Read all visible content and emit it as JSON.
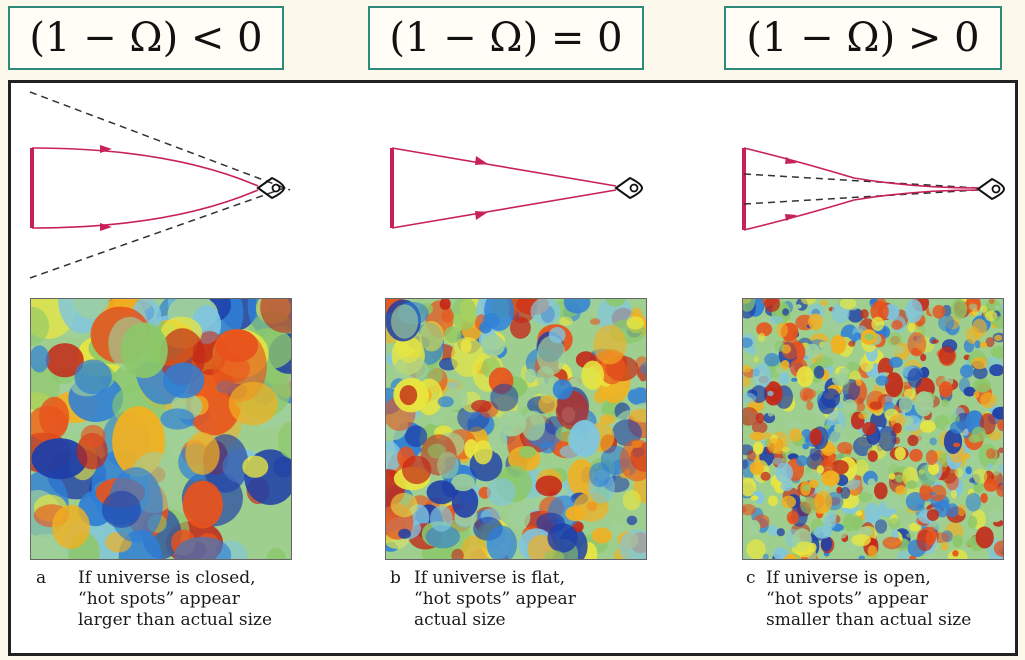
{
  "labels": {
    "closed": "(1 − Ω) < 0",
    "flat": "(1 − Ω) = 0",
    "open": "(1 − Ω) > 0"
  },
  "captions": [
    {
      "letter": "a",
      "lines": [
        "If universe is closed,",
        "“hot spots” appear",
        "larger than actual size"
      ]
    },
    {
      "letter": "b",
      "lines": [
        "If universe is flat,",
        "“hot spots” appear",
        "actual size"
      ]
    },
    {
      "letter": "c",
      "lines": [
        "If universe is open,",
        "“hot spots” appear",
        "smaller than actual size"
      ]
    }
  ],
  "colors": {
    "ray": "#c8215a",
    "dashed": "#333333",
    "label_border": "#2e8b7a",
    "map_palette": [
      "#1f3fa8",
      "#2f7fd6",
      "#7fc6e0",
      "#9fd09a",
      "#8cc86a",
      "#e8e640",
      "#f2b020",
      "#e8521c",
      "#c42818"
    ]
  },
  "icons": {
    "eye": "eye-icon"
  }
}
